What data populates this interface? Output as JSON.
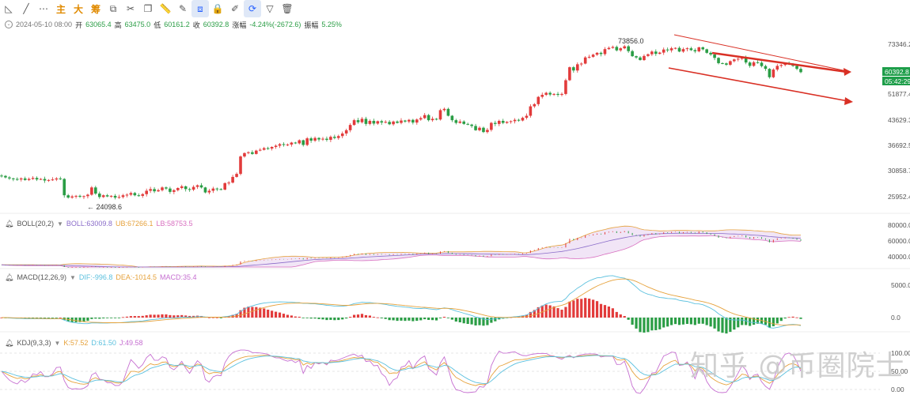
{
  "toolbar": {
    "items": [
      {
        "name": "trend-line-icon",
        "glyph": "◺"
      },
      {
        "name": "ray-icon",
        "glyph": "╱"
      },
      {
        "name": "more-dots-icon",
        "glyph": "⋯"
      },
      {
        "name": "main-label",
        "glyph": "主"
      },
      {
        "name": "big-label",
        "glyph": "大"
      },
      {
        "name": "chips-label",
        "glyph": "筹"
      },
      {
        "name": "layers-icon",
        "glyph": "⧉"
      },
      {
        "name": "scissors-icon",
        "glyph": "✂"
      },
      {
        "name": "copy-icon",
        "glyph": "❐"
      },
      {
        "name": "ruler-icon",
        "glyph": "📏"
      },
      {
        "name": "pencil-icon",
        "glyph": "✎"
      },
      {
        "name": "compare-icon",
        "glyph": "⧈"
      },
      {
        "name": "lock-icon",
        "glyph": "🔒"
      },
      {
        "name": "note-icon",
        "glyph": "✐"
      },
      {
        "name": "magnet-icon",
        "glyph": "⟳"
      },
      {
        "name": "filter-icon",
        "glyph": "▽"
      },
      {
        "name": "trash-icon",
        "glyph": "🗑"
      }
    ]
  },
  "ohlc": {
    "timestamp": "2024-05-10 08:00",
    "open_label": "开",
    "open": "63065.4",
    "high_label": "高",
    "high": "63475.0",
    "low_label": "低",
    "low": "60161.2",
    "close_label": "收",
    "close": "60392.8",
    "change_label": "涨幅",
    "change": "-4.24%(-2672.6)",
    "amp_label": "振幅",
    "amp": "5.25%"
  },
  "boll": {
    "name": "BOLL(20,2)",
    "mid_label": "BOLL:63009.8",
    "ub_label": "UB:67266.1",
    "lb_label": "LB:58753.5"
  },
  "macd": {
    "name": "MACD(12,26,9)",
    "dif_label": "DIF:-996.8",
    "dea_label": "DEA:-1014.5",
    "macd_label": "MACD:35.4"
  },
  "kdj": {
    "name": "KDJ(9,3,3)",
    "k_label": "K:57.52",
    "d_label": "D:61.50",
    "j_label": "J:49.58"
  },
  "watermark": "知乎 @币圈院士",
  "colors": {
    "up": "#e23b3b",
    "down": "#2a9d45",
    "mid": "#8a6cc9",
    "ub": "#e6a23c",
    "lb": "#d86fc0",
    "trend": "#d93025",
    "dif": "#5bc0de",
    "dea": "#e6a23c",
    "k": "#e6a23c",
    "d": "#5bc0de",
    "j": "#c66fd1",
    "price_tag": "#1e9e4a"
  },
  "chart_data": {
    "type": "candlestick",
    "price_axis_ticks": [
      73346.2,
      51877.4,
      43629.3,
      36692.5,
      30858.7,
      25952.4
    ],
    "price_tag": "60392.8",
    "countdown_tag": "05:42:29",
    "annotations": {
      "high": "73856.0",
      "low": "24098.6"
    },
    "boll_axis_ticks": [
      80000.0,
      60000.0,
      40000.0
    ],
    "macd_axis_ticks": [
      5000.0,
      0.0
    ],
    "kdj_axis_ticks": [
      100.0,
      50.0,
      0.0
    ],
    "closes": [
      29800,
      29500,
      29300,
      29200,
      29100,
      29300,
      29000,
      29200,
      29400,
      29100,
      29200,
      28900,
      29000,
      29100,
      29300,
      29200,
      26200,
      25800,
      26000,
      26100,
      25950,
      26050,
      26300,
      27600,
      26500,
      25900,
      26200,
      26000,
      26100,
      25800,
      25900,
      26200,
      26300,
      26600,
      26200,
      26100,
      26400,
      27000,
      27300,
      26900,
      27100,
      27600,
      27400,
      26800,
      27100,
      27500,
      27800,
      27300,
      27200,
      27700,
      28000,
      27600,
      26700,
      27000,
      27400,
      27300,
      27200,
      28400,
      28500,
      29600,
      30200,
      34000,
      34800,
      35000,
      34600,
      35400,
      35600,
      36000,
      35900,
      36300,
      36600,
      37000,
      36800,
      36900,
      37400,
      37200,
      38000,
      36800,
      38500,
      37900,
      38600,
      38200,
      38400,
      38100,
      38900,
      38600,
      39100,
      39800,
      40700,
      42200,
      43600,
      43000,
      44000,
      42500,
      43400,
      42600,
      43300,
      42900,
      43100,
      42400,
      43200,
      42800,
      43500,
      43200,
      43700,
      42900,
      43800,
      44200,
      45100,
      43600,
      44000,
      43800,
      46600,
      47000,
      44900,
      43600,
      42800,
      43200,
      42500,
      42300,
      41900,
      40700,
      41400,
      40200,
      40800,
      42800,
      42500,
      43400,
      42800,
      43100,
      43300,
      43700,
      43500,
      44300,
      44900,
      47800,
      48500,
      50900,
      51600,
      52300,
      51700,
      51900,
      51600,
      51900,
      57100,
      62500,
      61100,
      63800,
      64100,
      66900,
      67200,
      68200,
      69100,
      68500,
      70900,
      71500,
      72000,
      70300,
      71300,
      72300,
      69900,
      67500,
      66900,
      65700,
      67600,
      68400,
      69700,
      68600,
      69200,
      70700,
      70300,
      71300,
      71500,
      69700,
      70900,
      71300,
      70400,
      69800,
      71800,
      70800,
      69100,
      68300,
      66700,
      64300,
      64200,
      63600,
      65200,
      66000,
      66300,
      66800,
      64600,
      63100,
      64700,
      64500,
      63000,
      61800,
      58300,
      61500,
      63100,
      63500,
      64200,
      63800,
      63100,
      61800,
      60393
    ]
  }
}
